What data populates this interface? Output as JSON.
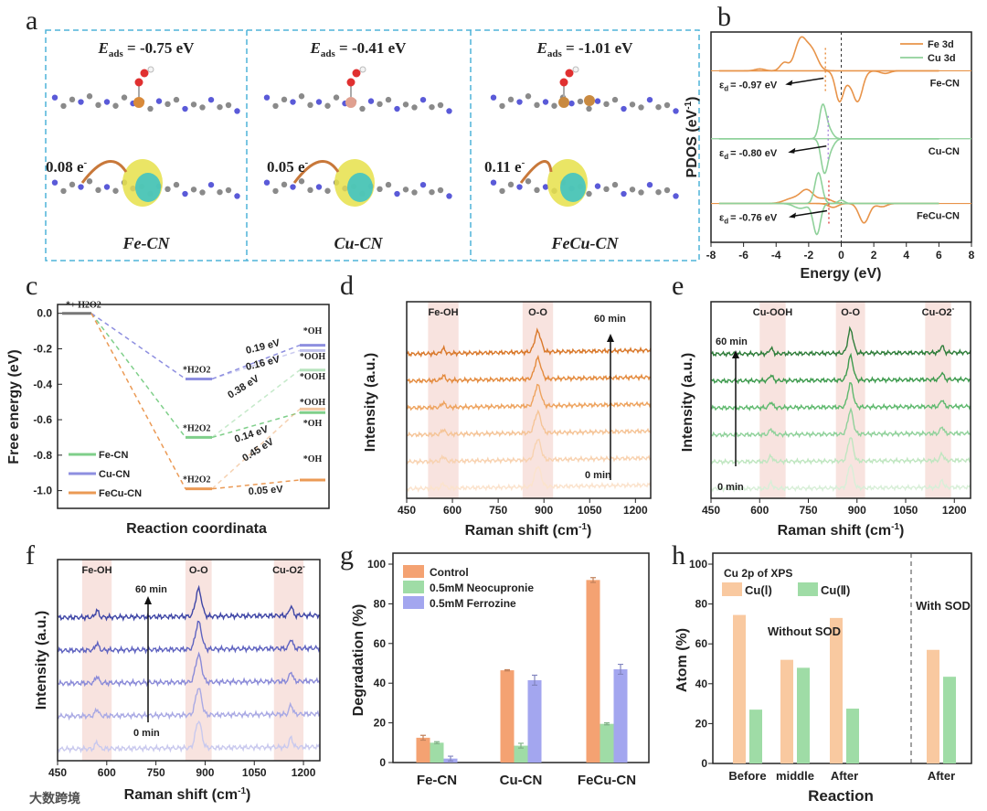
{
  "panel_letters": [
    "a",
    "b",
    "c",
    "d",
    "e",
    "f",
    "g",
    "h"
  ],
  "panel_a": {
    "structures": [
      {
        "name": "Fe-CN",
        "e_sym": "E",
        "e_sub": "ads",
        "e_val": " = -0.75 eV",
        "charge": "0.08 e",
        "metal_color": "#d98a3a"
      },
      {
        "name": "Cu-CN",
        "e_sym": "E",
        "e_sub": "ads",
        "e_val": " = -0.41 eV",
        "charge": "0.05 e",
        "metal_color": "#e0a090"
      },
      {
        "name": "FeCu-CN",
        "e_sym": "E",
        "e_sub": "ads",
        "e_val": " = -1.01 eV",
        "charge": "0.11 e",
        "metal_color": "#c98a40"
      }
    ],
    "charge_sup": "-",
    "border_color": "#4fb3d9"
  },
  "watermark": "大数跨境",
  "chart_data": [
    {
      "id": "b",
      "type": "line",
      "xlabel": "Energy (eV)",
      "ylabel": "PDOS (eV",
      "ylabel_sup": "-1",
      "ylabel_end": ")",
      "xlim": [
        -8,
        8
      ],
      "xticks": [
        "-8",
        "-6",
        "-4",
        "-2",
        "0",
        "2",
        "4",
        "6",
        "8"
      ],
      "legend": [
        {
          "name": "Fe 3d",
          "color": "#e8944a"
        },
        {
          "name": "Cu 3d",
          "color": "#8fd19a"
        }
      ],
      "legend_position": "top-right",
      "systems": [
        {
          "name": "Fe-CN",
          "eps": "= -0.97 eV",
          "eps_value": -0.97,
          "marker_color": "#e8944a",
          "baseline": 2.1,
          "curves": [
            {
              "color": "#e8944a",
              "peaks": [
                [
                  -5.0,
                  0.06,
                  0.3
                ],
                [
                  -3.5,
                  0.25,
                  0.25
                ],
                [
                  -2.5,
                  0.95,
                  0.35
                ],
                [
                  -1.8,
                  0.6,
                  0.35
                ]
              ]
            },
            {
              "color": "#e8944a",
              "peaks": [
                [
                  -0.1,
                  -0.95,
                  0.25
                ],
                [
                  0.45,
                  -0.2,
                  0.2
                ],
                [
                  1.0,
                  -0.95,
                  0.3
                ],
                [
                  2.7,
                  -0.08,
                  0.3
                ]
              ]
            }
          ]
        },
        {
          "name": "Cu-CN",
          "eps": "= -0.80 eV",
          "eps_value": -0.8,
          "marker_color": "#b090e0",
          "baseline": 0,
          "curves": [
            {
              "color": "#8fd19a",
              "peaks": [
                [
                  -1.15,
                  0.95,
                  0.2
                ],
                [
                  -0.8,
                  0.3,
                  0.25
                ]
              ]
            },
            {
              "color": "#8fd19a",
              "peaks": [
                [
                  -1.05,
                  -0.95,
                  0.2
                ],
                [
                  -0.7,
                  -0.3,
                  0.25
                ]
              ]
            }
          ]
        },
        {
          "name": "FeCu-CN",
          "eps": "= -0.76 eV",
          "eps_value": -0.76,
          "marker_color": "#e05050",
          "baseline": -2.0,
          "curves": [
            {
              "color": "#e8944a",
              "peaks": [
                [
                  -3.0,
                  0.15,
                  0.5
                ],
                [
                  -2.1,
                  0.4,
                  0.4
                ],
                [
                  -1.0,
                  0.15,
                  0.4
                ]
              ]
            },
            {
              "color": "#e8944a",
              "peaks": [
                [
                  -0.5,
                  -0.12,
                  0.3
                ],
                [
                  1.4,
                  -0.6,
                  0.3
                ],
                [
                  2.5,
                  -0.1,
                  0.3
                ]
              ]
            },
            {
              "color": "#8fd19a",
              "peaks": [
                [
                  -1.4,
                  0.95,
                  0.22
                ],
                [
                  0,
                  0.1,
                  0.2
                ]
              ]
            },
            {
              "color": "#8fd19a",
              "peaks": [
                [
                  -1.5,
                  -0.95,
                  0.22
                ],
                [
                  -2.5,
                  -0.15,
                  0.4
                ]
              ]
            }
          ]
        }
      ],
      "eps_symbol": "ε",
      "eps_sub": "d"
    },
    {
      "id": "c",
      "type": "line",
      "xlabel": "Reaction coordinata",
      "ylabel": "Free energy (eV)",
      "ylim": [
        -1.1,
        0.05
      ],
      "yticks": [
        "0.0",
        "-0.2",
        "-0.4",
        "-0.6",
        "-0.8",
        "-1.0"
      ],
      "ytick_values": [
        0,
        -0.2,
        -0.4,
        -0.6,
        -0.8,
        -1.0
      ],
      "start_label": "*+ H2O2",
      "series": [
        {
          "name": "Fe-CN",
          "color": "#7fcf8a",
          "h2o2": -0.7,
          "ooh": -0.32,
          "oh": -0.56,
          "ooh_barrier": "0.38 eV",
          "oh_barrier": "0.14 eV"
        },
        {
          "name": "Cu-CN",
          "color": "#8e8fe0",
          "h2o2": -0.37,
          "ooh": -0.21,
          "oh": -0.18,
          "ooh_barrier": "0.16 eV",
          "oh_barrier": "0.19 eV"
        },
        {
          "name": "FeCu-CN",
          "color": "#eb9a55",
          "h2o2": -0.99,
          "ooh": -0.54,
          "oh": -0.94,
          "ooh_barrier": "0.45 eV",
          "oh_barrier": "0.05 eV"
        }
      ],
      "mid_label": "*H2O2",
      "right_labels": [
        "*OH",
        "*OOH",
        "*OOH",
        "*OOH",
        "*OH",
        "*OH"
      ],
      "legend_position": "bottom-left"
    },
    {
      "id": "d",
      "type": "line",
      "xlabel": "Raman shift (cm",
      "xlabel_sup": "-1",
      "xlabel_end": ")",
      "ylabel": "Intensity (a.u.)",
      "xlim": [
        450,
        1250
      ],
      "xticks": [
        "450",
        "600",
        "750",
        "900",
        "1050",
        "1200"
      ],
      "xtick_values": [
        450,
        600,
        750,
        900,
        1050,
        1200
      ],
      "bands": [
        {
          "label": "Fe-OH",
          "from": 520,
          "to": 620
        },
        {
          "label": "O-O",
          "from": 830,
          "to": 930
        }
      ],
      "peaks": [
        [
          570,
          0.15,
          6
        ],
        [
          880,
          0.65,
          10
        ]
      ],
      "trace_colors": [
        "#fbe3cd",
        "#f8d2b0",
        "#f5c497",
        "#eea35e",
        "#e48b3e",
        "#d9782a"
      ],
      "slope": 0.12,
      "time_top": "60 min",
      "time_bottom": "0 min"
    },
    {
      "id": "e",
      "type": "line",
      "xlabel": "Raman shift (cm",
      "xlabel_sup": "-1",
      "xlabel_end": ")",
      "ylabel": "Intensity (a.u.)",
      "xlim": [
        450,
        1250
      ],
      "xticks": [
        "450",
        "600",
        "750",
        "900",
        "1050",
        "1200"
      ],
      "xtick_values": [
        450,
        600,
        750,
        900,
        1050,
        1200
      ],
      "bands": [
        {
          "label": "Cu-OOH",
          "from": 600,
          "to": 680
        },
        {
          "label": "O-O",
          "from": 835,
          "to": 925
        },
        {
          "label": "Cu-O2",
          "label_sup": "-",
          "from": 1110,
          "to": 1190
        }
      ],
      "peaks": [
        [
          635,
          0.18,
          5
        ],
        [
          880,
          0.75,
          8
        ],
        [
          1162,
          0.22,
          5
        ]
      ],
      "trace_colors": [
        "#d8efd8",
        "#bfe6c0",
        "#8fd19a",
        "#5fb96e",
        "#3d9a4d",
        "#2f7d3a"
      ],
      "slope": 0.05,
      "time_top": "60 min",
      "time_bottom": "0 min"
    },
    {
      "id": "f",
      "type": "line",
      "xlabel": "Raman shift (cm",
      "xlabel_sup": "-1",
      "xlabel_end": ")",
      "ylabel": "Intensity (a.u.)",
      "xlim": [
        450,
        1250
      ],
      "xticks": [
        "450",
        "600",
        "750",
        "900",
        "1050",
        "1200"
      ],
      "xtick_values": [
        450,
        600,
        750,
        900,
        1050,
        1200
      ],
      "bands": [
        {
          "label": "Fe-OH",
          "from": 525,
          "to": 615
        },
        {
          "label": "O-O",
          "from": 840,
          "to": 920
        },
        {
          "label": "Cu-O2",
          "label_sup": "-",
          "from": 1110,
          "to": 1200
        }
      ],
      "peaks": [
        [
          570,
          0.18,
          5
        ],
        [
          880,
          0.7,
          9
        ],
        [
          1162,
          0.25,
          5
        ]
      ],
      "trace_colors": [
        "#c9c9ee",
        "#a9a9e4",
        "#8a8ad8",
        "#5f63c0",
        "#3f46a6"
      ],
      "slope": 0.06,
      "time_top": "60 min",
      "time_bottom": "0 min"
    },
    {
      "id": "g",
      "type": "bar",
      "ylabel": "Degradation (%)",
      "ylim": [
        0,
        100
      ],
      "yticks": [
        "0",
        "20",
        "40",
        "60",
        "80",
        "100"
      ],
      "ytick_values": [
        0,
        20,
        40,
        60,
        80,
        100
      ],
      "categories": [
        "Fe-CN",
        "Cu-CN",
        "FeCu-CN"
      ],
      "series": [
        {
          "name": "Control",
          "color": "#f4a272",
          "values": [
            12.5,
            46.5,
            92
          ],
          "errors": [
            1.2,
            0.3,
            1.2
          ]
        },
        {
          "name": "0.5mM Neocupronie",
          "color": "#9fdca6",
          "values": [
            10,
            8.5,
            19.5
          ],
          "errors": [
            0.5,
            1.2,
            0.5
          ]
        },
        {
          "name": "0.5mM Ferrozine",
          "color": "#a3a6ef",
          "values": [
            2,
            41.5,
            47
          ],
          "errors": [
            1.2,
            2.5,
            2.5
          ]
        }
      ],
      "legend_position": "top-left"
    },
    {
      "id": "h",
      "type": "bar",
      "xlabel": "Reaction",
      "ylabel": "Atom (%)",
      "ylim": [
        0,
        100
      ],
      "yticks": [
        "0",
        "20",
        "40",
        "60",
        "80",
        "100"
      ],
      "ytick_values": [
        0,
        20,
        40,
        60,
        80,
        100
      ],
      "title": "Cu 2p of XPS",
      "categories": [
        "Before",
        "middle",
        "After",
        "After"
      ],
      "groups": [
        "Without SOD",
        "With SOD"
      ],
      "series": [
        {
          "name": "Cu(Ⅰ)",
          "color": "#f9c9a0",
          "values": [
            74.5,
            52,
            73,
            57
          ]
        },
        {
          "name": "Cu(Ⅱ)",
          "color": "#9fdca6",
          "values": [
            27,
            48,
            27.5,
            43.5
          ]
        }
      ],
      "legend_position": "top-left"
    }
  ]
}
